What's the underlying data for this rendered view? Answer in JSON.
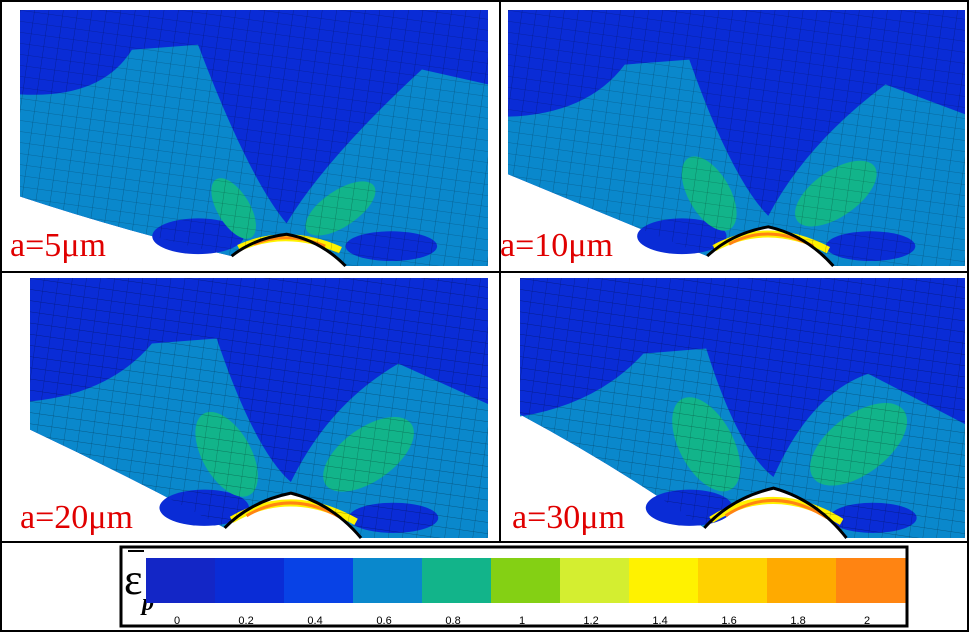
{
  "panels": [
    {
      "label": "a=5μm"
    },
    {
      "label": "a=10μm"
    },
    {
      "label": "a=20μm"
    },
    {
      "label": "a=30μm"
    }
  ],
  "legend": {
    "symbol": "ε",
    "subscript": "p",
    "levels": [
      {
        "label": "0",
        "color": "#1326c6"
      },
      {
        "label": "0.2",
        "color": "#0a2cd6"
      },
      {
        "label": "0.4",
        "color": "#0842e6"
      },
      {
        "label": "0.6",
        "color": "#0a88cc"
      },
      {
        "label": "0.8",
        "color": "#12b48a"
      },
      {
        "label": "1",
        "color": "#84d014"
      },
      {
        "label": "1.2",
        "color": "#d4ee30"
      },
      {
        "label": "1.4",
        "color": "#fff200"
      },
      {
        "label": "1.6",
        "color": "#ffd200"
      },
      {
        "label": "1.8",
        "color": "#ffaa00"
      },
      {
        "label": "2",
        "color": "#ff8412"
      }
    ]
  }
}
